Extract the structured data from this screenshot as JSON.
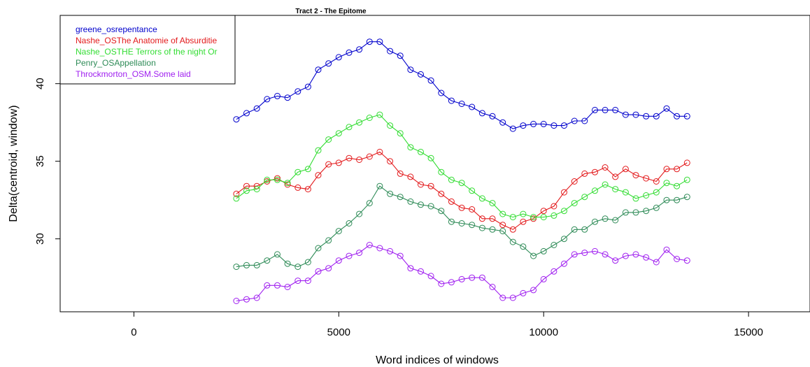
{
  "chart_data": {
    "type": "line",
    "title": "Tract 2  - The Epitome",
    "xlabel": "Word indices of windows",
    "ylabel": "Delta(centroid, window)",
    "xlim": [
      -1800,
      16500
    ],
    "ylim": [
      25.3,
      44.4
    ],
    "xticks": [
      0,
      5000,
      10000,
      15000
    ],
    "yticks": [
      30,
      35,
      40
    ],
    "grid": false,
    "legend_position": "top-left",
    "x": [
      2500,
      2750,
      3000,
      3250,
      3500,
      3750,
      4000,
      4250,
      4500,
      4750,
      5000,
      5250,
      5500,
      5750,
      6000,
      6250,
      6500,
      6750,
      7000,
      7250,
      7500,
      7750,
      8000,
      8250,
      8500,
      8750,
      9000,
      9250,
      9500,
      9750,
      10000,
      10250,
      10500,
      10750,
      11000,
      11250,
      11500,
      11750,
      12000,
      12250,
      12500,
      12750,
      13000,
      13250,
      13500
    ],
    "series": [
      {
        "name": "greene_osrepentance",
        "color": "#0000cc",
        "values": [
          37.7,
          38.1,
          38.4,
          39.0,
          39.2,
          39.1,
          39.5,
          39.8,
          40.9,
          41.3,
          41.7,
          42.0,
          42.2,
          42.7,
          42.7,
          42.1,
          41.8,
          40.9,
          40.6,
          40.2,
          39.4,
          38.9,
          38.7,
          38.5,
          38.1,
          37.9,
          37.5,
          37.1,
          37.3,
          37.4,
          37.4,
          37.3,
          37.3,
          37.6,
          37.6,
          38.3,
          38.3,
          38.3,
          38.0,
          38.0,
          37.9,
          37.9,
          38.4,
          37.9,
          37.9
        ]
      },
      {
        "name": "Nashe_OSThe Anatomie of Absurditie",
        "color": "#e31a1c",
        "values": [
          32.9,
          33.4,
          33.4,
          33.7,
          33.9,
          33.5,
          33.3,
          33.2,
          34.1,
          34.8,
          34.9,
          35.2,
          35.1,
          35.3,
          35.6,
          35.0,
          34.2,
          34.0,
          33.5,
          33.4,
          32.9,
          32.4,
          32.0,
          31.9,
          31.3,
          31.3,
          30.9,
          30.6,
          31.1,
          31.3,
          31.8,
          32.1,
          33.0,
          33.7,
          34.2,
          34.3,
          34.6,
          34.0,
          34.5,
          34.1,
          33.9,
          33.7,
          34.5,
          34.5,
          34.9
        ]
      },
      {
        "name": "Nashe_OSTHE Terrors of the night Or",
        "color": "#33dd33",
        "values": [
          32.6,
          33.1,
          33.2,
          33.8,
          33.8,
          33.6,
          34.3,
          34.5,
          35.7,
          36.4,
          36.8,
          37.2,
          37.5,
          37.8,
          38.0,
          37.3,
          36.8,
          35.9,
          35.6,
          35.2,
          34.3,
          33.8,
          33.6,
          33.1,
          32.6,
          32.3,
          31.6,
          31.4,
          31.6,
          31.4,
          31.4,
          31.5,
          31.8,
          32.3,
          32.7,
          33.1,
          33.5,
          33.2,
          33.0,
          32.6,
          32.8,
          33.0,
          33.6,
          33.4,
          33.8
        ]
      },
      {
        "name": "Penry_OSAppellation",
        "color": "#2e8b57",
        "values": [
          28.2,
          28.3,
          28.3,
          28.6,
          29.0,
          28.4,
          28.2,
          28.5,
          29.4,
          29.9,
          30.5,
          31.0,
          31.6,
          32.3,
          33.4,
          32.9,
          32.7,
          32.4,
          32.2,
          32.1,
          31.8,
          31.1,
          31.0,
          30.9,
          30.7,
          30.6,
          30.5,
          29.8,
          29.5,
          28.9,
          29.2,
          29.6,
          30.0,
          30.6,
          30.6,
          31.1,
          31.3,
          31.2,
          31.7,
          31.7,
          31.8,
          32.0,
          32.5,
          32.5,
          32.7
        ]
      },
      {
        "name": "Throckmorton_OSM.Some laid",
        "color": "#a020f0",
        "values": [
          26.0,
          26.1,
          26.2,
          27.0,
          27.0,
          26.9,
          27.3,
          27.3,
          27.9,
          28.1,
          28.6,
          28.9,
          29.1,
          29.6,
          29.4,
          29.2,
          28.9,
          28.1,
          27.9,
          27.6,
          27.1,
          27.2,
          27.4,
          27.5,
          27.5,
          26.9,
          26.2,
          26.2,
          26.5,
          26.7,
          27.4,
          27.9,
          28.4,
          29.0,
          29.1,
          29.2,
          29.0,
          28.6,
          28.9,
          29.0,
          28.8,
          28.5,
          29.3,
          28.7,
          28.6
        ]
      }
    ]
  }
}
